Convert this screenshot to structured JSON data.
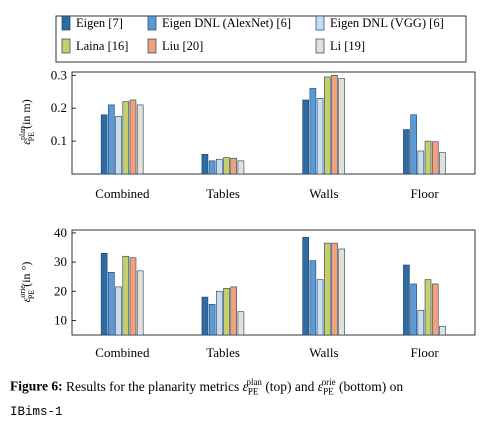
{
  "legend": [
    {
      "label": "Eigen [7]",
      "color": "#2e6da4"
    },
    {
      "label": "Eigen DNL (AlexNet) [6]",
      "color": "#5b9bd5"
    },
    {
      "label": "Eigen DNL (VGG) [6]",
      "color": "#c6dcf0"
    },
    {
      "label": "Laina [16]",
      "color": "#c7cf6b"
    },
    {
      "label": "Liu [20]",
      "color": "#f2a27a"
    },
    {
      "label": "Li [19]",
      "color": "#e3e0d5"
    }
  ],
  "chart_data": [
    {
      "type": "bar",
      "categories": [
        "Combined",
        "Tables",
        "Walls",
        "Floor"
      ],
      "ylim": [
        0,
        0.31
      ],
      "yticks": [
        0.1,
        0.2,
        0.3
      ],
      "ytick_labels": [
        "0.1",
        "0.2",
        "0.3"
      ],
      "ylabel": "ε_PE^plan (in m)",
      "grid": false,
      "series": [
        {
          "name": "Eigen [7]",
          "values": [
            0.18,
            0.06,
            0.225,
            0.135
          ]
        },
        {
          "name": "Eigen DNL (AlexNet) [6]",
          "values": [
            0.21,
            0.04,
            0.26,
            0.18
          ]
        },
        {
          "name": "Eigen DNL (VGG) [6]",
          "values": [
            0.175,
            0.045,
            0.23,
            0.07
          ]
        },
        {
          "name": "Laina [16]",
          "values": [
            0.22,
            0.05,
            0.295,
            0.1
          ]
        },
        {
          "name": "Liu [20]",
          "values": [
            0.225,
            0.048,
            0.3,
            0.098
          ]
        },
        {
          "name": "Li [19]",
          "values": [
            0.21,
            0.04,
            0.29,
            0.065
          ]
        }
      ]
    },
    {
      "type": "bar",
      "categories": [
        "Combined",
        "Tables",
        "Walls",
        "Floor"
      ],
      "ylim": [
        5,
        41
      ],
      "yticks": [
        10,
        20,
        30,
        40
      ],
      "ytick_labels": [
        "10",
        "20",
        "30",
        "40"
      ],
      "ylabel": "ε_PE^orie (in °)",
      "grid": false,
      "series": [
        {
          "name": "Eigen [7]",
          "values": [
            33,
            18,
            38.5,
            29
          ]
        },
        {
          "name": "Eigen DNL (AlexNet) [6]",
          "values": [
            26.5,
            15.5,
            30.5,
            22.5
          ]
        },
        {
          "name": "Eigen DNL (VGG) [6]",
          "values": [
            21.5,
            20,
            24,
            13.5
          ]
        },
        {
          "name": "Laina [16]",
          "values": [
            32,
            21,
            36.5,
            24
          ]
        },
        {
          "name": "Liu [20]",
          "values": [
            31.5,
            21.5,
            36.5,
            22.5
          ]
        },
        {
          "name": "Li [19]",
          "values": [
            27,
            13,
            34.5,
            8
          ]
        }
      ]
    }
  ],
  "caption": {
    "label": "Figure 6:",
    "text": "Results for the planarity metrics ε_PE^plan (top) and ε_PE^orie (bottom) on",
    "dataset": "IBims-1"
  }
}
